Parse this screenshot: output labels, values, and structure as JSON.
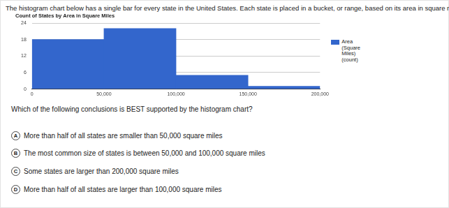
{
  "intro": "The histogram chart below has a single bar for every state in the United States. Each state is placed in a bucket, or range, based on its area in square miles.",
  "chart_data": {
    "type": "histogram",
    "title": "Count of States by Area in Square Miles",
    "bins": [
      0,
      50000,
      100000,
      150000,
      200000
    ],
    "series": [
      {
        "name": "Area (Square Miles) (count)",
        "color": "#3366cc",
        "values": [
          18,
          22,
          5,
          1
        ]
      }
    ],
    "xlim": [
      0,
      200000
    ],
    "xticks": [
      0,
      {
        "value": 50000,
        "label": "50,000"
      },
      {
        "value": 100000,
        "label": "100,000"
      },
      {
        "value": 150000,
        "label": "150,000"
      },
      {
        "value": 200000,
        "label": "200,000"
      }
    ],
    "ylim": [
      0,
      24
    ],
    "yticks": [
      0,
      6,
      12,
      18,
      24
    ],
    "grid": true,
    "legend": "right"
  },
  "question": "Which of the following conclusions is BEST supported by the histogram chart?",
  "options": [
    {
      "letter": "A",
      "text": "More than half of all states are smaller than 50,000 square miles"
    },
    {
      "letter": "B",
      "text": "The most common size of states is between 50,000 and 100,000 square miles"
    },
    {
      "letter": "C",
      "text": "Some states are larger than 200,000 square miles"
    },
    {
      "letter": "D",
      "text": "More than half of all states are larger than 100,000 square miles"
    }
  ]
}
